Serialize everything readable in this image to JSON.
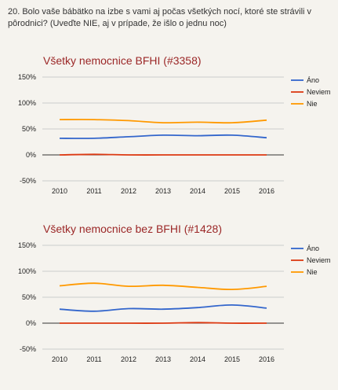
{
  "question": "20. Bolo vaše bábätko na izbe s vami aj počas všetkých nocí, ktoré ste strávili v pôrodnici? (Uveďte NIE, aj v prípade, že išlo o jednu noc)",
  "chart_data": [
    {
      "type": "line",
      "title": "Všetky nemocnice BFHI (#3358)",
      "x": [
        "2010",
        "2011",
        "2012",
        "2013",
        "2014",
        "2015",
        "2016"
      ],
      "ylim": [
        -50,
        150
      ],
      "yticks": [
        "150%",
        "100%",
        "50%",
        "0%",
        "-50%"
      ],
      "ytick_values": [
        150,
        100,
        50,
        0,
        -50
      ],
      "grid": true,
      "legend_position": "right",
      "series": [
        {
          "name": "Áno",
          "color": "#3366cc",
          "values": [
            32,
            32,
            35,
            38,
            37,
            38,
            33
          ]
        },
        {
          "name": "Neviem",
          "color": "#dc3912",
          "values": [
            0,
            1,
            0,
            0,
            0,
            0,
            0
          ]
        },
        {
          "name": "Nie",
          "color": "#ff9900",
          "values": [
            68,
            68,
            66,
            62,
            63,
            62,
            67
          ]
        }
      ]
    },
    {
      "type": "line",
      "title": "Všetky nemocnice bez BFHI (#1428)",
      "x": [
        "2010",
        "2011",
        "2012",
        "2013",
        "2014",
        "2015",
        "2016"
      ],
      "ylim": [
        -50,
        150
      ],
      "yticks": [
        "150%",
        "100%",
        "50%",
        "0%",
        "-50%"
      ],
      "ytick_values": [
        150,
        100,
        50,
        0,
        -50
      ],
      "grid": true,
      "legend_position": "right",
      "series": [
        {
          "name": "Áno",
          "color": "#3366cc",
          "values": [
            27,
            23,
            28,
            27,
            30,
            35,
            29
          ]
        },
        {
          "name": "Neviem",
          "color": "#dc3912",
          "values": [
            0,
            0,
            0,
            0,
            1,
            0,
            0
          ]
        },
        {
          "name": "Nie",
          "color": "#ff9900",
          "values": [
            72,
            77,
            71,
            73,
            69,
            65,
            71
          ]
        }
      ]
    }
  ]
}
